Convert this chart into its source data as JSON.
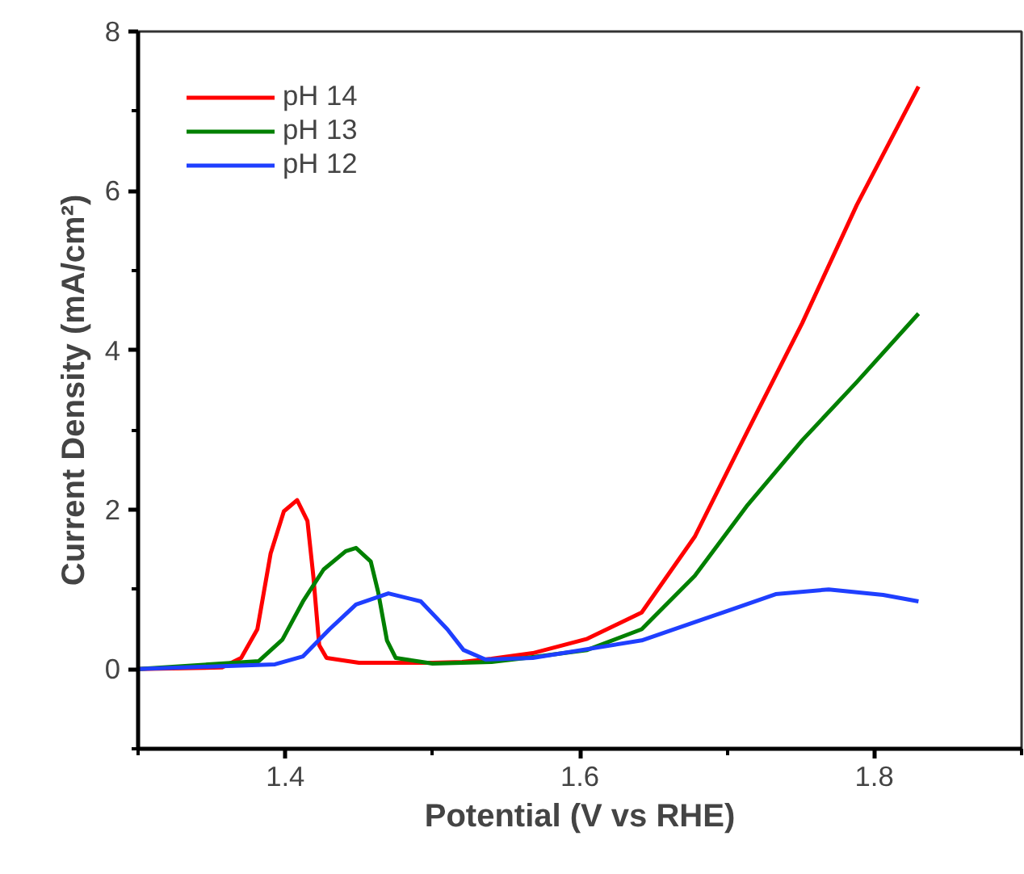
{
  "chart_data": {
    "type": "line",
    "xlabel": "Potential (V vs RHE)",
    "ylabel": "Current Density (mA/cm²)",
    "xlim": [
      1.3,
      1.9
    ],
    "ylim": [
      -1,
      8
    ],
    "xticks": [
      {
        "value": 1.3,
        "label": null
      },
      1.4,
      {
        "value": 1.5,
        "label": null
      },
      1.6,
      {
        "value": 1.7,
        "label": null
      },
      1.8,
      {
        "value": 1.9,
        "label": null
      }
    ],
    "yticks": [
      {
        "value": -1,
        "label": null
      },
      0,
      {
        "value": 1,
        "label": null
      },
      2,
      {
        "value": 3,
        "label": null
      },
      4,
      {
        "value": 5,
        "label": null
      },
      6,
      {
        "value": 7,
        "label": null
      },
      8
    ],
    "grid": false,
    "legend": "top left",
    "marker": "none",
    "line_style": "solid",
    "series": [
      {
        "name": "pH 14",
        "color": "#ff0000",
        "x": [
          1.3,
          1.357,
          1.37,
          1.381,
          1.39,
          1.399,
          1.408,
          1.415,
          1.419,
          1.423,
          1.428,
          1.45,
          1.5,
          1.52,
          1.54,
          1.568,
          1.605,
          1.642,
          1.678,
          1.714,
          1.751,
          1.788,
          1.83
        ],
        "values": [
          0.0,
          0.02,
          0.14,
          0.5,
          1.45,
          1.98,
          2.12,
          1.86,
          1.17,
          0.3,
          0.14,
          0.08,
          0.08,
          0.09,
          0.13,
          0.2,
          0.38,
          0.71,
          1.66,
          2.99,
          4.34,
          5.82,
          7.31
        ]
      },
      {
        "name": "pH 13",
        "color": "#008000",
        "x": [
          1.3,
          1.382,
          1.398,
          1.412,
          1.426,
          1.441,
          1.448,
          1.458,
          1.463,
          1.469,
          1.475,
          1.5,
          1.54,
          1.568,
          1.605,
          1.642,
          1.678,
          1.714,
          1.751,
          1.788,
          1.83
        ],
        "values": [
          0.0,
          0.1,
          0.37,
          0.85,
          1.25,
          1.48,
          1.52,
          1.35,
          0.97,
          0.36,
          0.14,
          0.07,
          0.09,
          0.15,
          0.24,
          0.5,
          1.17,
          2.06,
          2.87,
          3.6,
          4.46
        ]
      },
      {
        "name": "pH 12",
        "color": "#1f3fff",
        "x": [
          1.3,
          1.393,
          1.412,
          1.43,
          1.448,
          1.47,
          1.492,
          1.51,
          1.521,
          1.536,
          1.568,
          1.642,
          1.697,
          1.733,
          1.769,
          1.806,
          1.83
        ],
        "values": [
          0.0,
          0.06,
          0.16,
          0.5,
          0.81,
          0.95,
          0.85,
          0.5,
          0.24,
          0.12,
          0.14,
          0.36,
          0.71,
          0.94,
          1.0,
          0.93,
          0.85
        ]
      }
    ]
  }
}
